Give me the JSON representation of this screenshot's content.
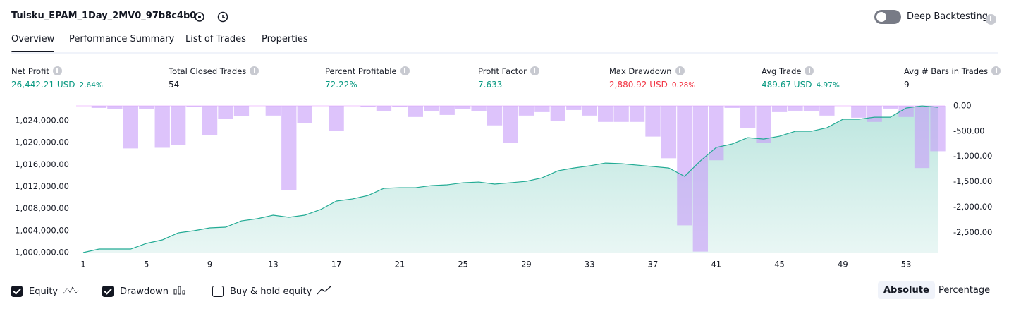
{
  "header": {
    "title": "Tuisku_EPAM_1Day_2MV0_97b8c4b0",
    "deep_backtesting": "Deep Backtesting",
    "deep_backtesting_on": false
  },
  "tabs": {
    "items": [
      "Overview",
      "Performance Summary",
      "List of Trades",
      "Properties"
    ],
    "active": 0
  },
  "metrics": [
    {
      "label": "Net Profit",
      "value": "26,442.21 USD",
      "change": "2.64%",
      "color": "#089981"
    },
    {
      "label": "Total Closed Trades",
      "value": "54",
      "color": "#131722"
    },
    {
      "label": "Percent Profitable",
      "value": "72.22%",
      "color": "#089981"
    },
    {
      "label": "Profit Factor",
      "value": "7.633",
      "color": "#089981"
    },
    {
      "label": "Max Drawdown",
      "value": "2,880.92 USD",
      "change": "0.28%",
      "color": "#f23645"
    },
    {
      "label": "Avg Trade",
      "value": "489.67 USD",
      "change": "4.97%",
      "color": "#089981"
    },
    {
      "label": "Avg # Bars in Trades",
      "value": "9",
      "color": "#131722"
    }
  ],
  "chart_data": {
    "type": "line",
    "x": [
      1,
      2,
      3,
      4,
      5,
      6,
      7,
      8,
      9,
      10,
      11,
      12,
      13,
      14,
      15,
      16,
      17,
      18,
      19,
      20,
      21,
      22,
      23,
      24,
      25,
      26,
      27,
      28,
      29,
      30,
      31,
      32,
      33,
      34,
      35,
      36,
      37,
      38,
      39,
      40,
      41,
      42,
      43,
      44,
      45,
      46,
      47,
      48,
      49,
      50,
      51,
      52,
      53,
      54,
      55
    ],
    "xlim": [
      1,
      55
    ],
    "xticks": [
      1,
      5,
      9,
      13,
      17,
      21,
      25,
      29,
      33,
      37,
      41,
      45,
      49,
      53
    ],
    "ylim": [
      1000000,
      1026700
    ],
    "yticks": [
      {
        "value": 1000000,
        "label": "1,000,000.00"
      },
      {
        "value": 1004000,
        "label": "1,004,000.00"
      },
      {
        "value": 1008000,
        "label": "1,008,000.00"
      },
      {
        "value": 1012000,
        "label": "1,012,000.00"
      },
      {
        "value": 1016000,
        "label": "1,016,000.00"
      },
      {
        "value": 1020000,
        "label": "1,020,000.00"
      },
      {
        "value": 1024000,
        "label": "1,024,000.00"
      }
    ],
    "y2lim": [
      -2900,
      0
    ],
    "y2ticks": [
      {
        "value": 0,
        "label": "0.00"
      },
      {
        "value": -500,
        "label": "-500.00"
      },
      {
        "value": -1000,
        "label": "-1,000.00"
      },
      {
        "value": -1500,
        "label": "-1,500.00"
      },
      {
        "value": -2000,
        "label": "-2,000.00"
      },
      {
        "value": -2500,
        "label": "-2,500.00"
      }
    ],
    "series": [
      {
        "name": "Equity",
        "type": "area",
        "color": "#22ab94",
        "checked": true,
        "values": [
          1000000,
          1000640,
          1000640,
          1000640,
          1001670,
          1002310,
          1003590,
          1003980,
          1004490,
          1004620,
          1005770,
          1006160,
          1006800,
          1006420,
          1006800,
          1007830,
          1009370,
          1009750,
          1010390,
          1011680,
          1011800,
          1011800,
          1012190,
          1012320,
          1012700,
          1012830,
          1012450,
          1012700,
          1012960,
          1013600,
          1014880,
          1015390,
          1015780,
          1016290,
          1016170,
          1015910,
          1015650,
          1015390,
          1013860,
          1016680,
          1019120,
          1019760,
          1020910,
          1020650,
          1021170,
          1022070,
          1022070,
          1022710,
          1024250,
          1024250,
          1024630,
          1024630,
          1026300,
          1026690,
          1026442.21
        ]
      },
      {
        "name": "Drawdown",
        "type": "bar",
        "axis": "y2",
        "color": "#c79bf8",
        "checked": true,
        "values": [
          0,
          -41,
          -69,
          -842,
          -69,
          -829,
          -773,
          -14,
          -580,
          -262,
          -207,
          0,
          -193,
          -1671,
          -345,
          0,
          -497,
          0,
          -28,
          -110,
          -28,
          -221,
          -110,
          -180,
          -69,
          -110,
          -387,
          -732,
          -193,
          -124,
          -304,
          -83,
          -193,
          -318,
          -318,
          -318,
          -608,
          -1036,
          -2362,
          -2880.92,
          -1077,
          -41,
          -442,
          -732,
          -124,
          -97,
          -110,
          -193,
          0,
          -235,
          -318,
          -55,
          -221,
          -1229,
          -898
        ]
      },
      {
        "name": "Buy & hold equity",
        "type": "line",
        "checked": false
      }
    ]
  },
  "scale": {
    "options": [
      "Absolute",
      "Percentage"
    ],
    "active": 0
  }
}
